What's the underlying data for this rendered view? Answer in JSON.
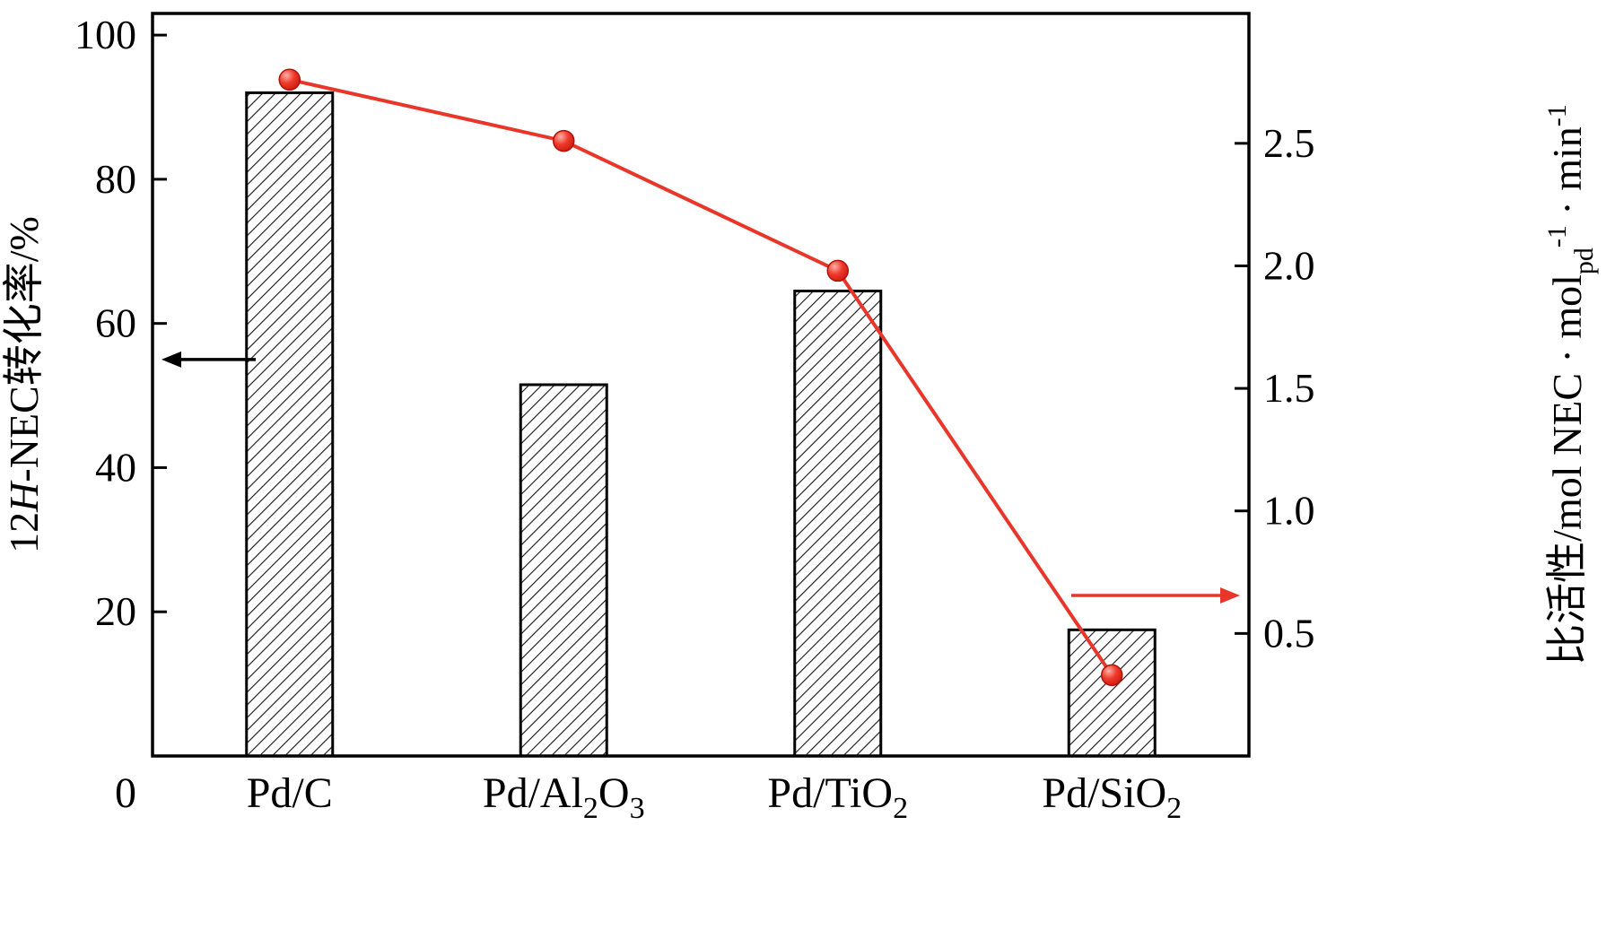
{
  "figure": {
    "background": "#ffffff"
  },
  "chart_data": {
    "type": "bar",
    "subtype": "bar-line-combo-dual-axis",
    "title": "",
    "xlabel": "",
    "categories": [
      "Pd/C",
      "Pd/Al2O3",
      "Pd/TiO2",
      "Pd/SiO2"
    ],
    "series": [
      {
        "name": "12H-NEC conversion (hatched bars, left axis)",
        "type": "bar",
        "axis": "left",
        "values": [
          92,
          51.5,
          64.5,
          17.5
        ]
      },
      {
        "name": "specific activity (red line with sphere markers, right axis)",
        "type": "line",
        "axis": "right",
        "values": [
          2.76,
          2.51,
          1.98,
          0.33
        ]
      }
    ],
    "left_axis": {
      "label": "12H-NEC转化率/%",
      "label_segments": [
        {
          "t": "12"
        },
        {
          "t": "H",
          "style": "italic"
        },
        {
          "t": "-NEC转化率/%"
        }
      ],
      "ticks": [
        20,
        40,
        60,
        80,
        100
      ],
      "origin_label": "0",
      "range": [
        0,
        103
      ]
    },
    "right_axis": {
      "label": "比活性/mol NEC·mol_pd^-1·min^-1",
      "label_segments": [
        {
          "t": "比活性/mol NEC · mol"
        },
        {
          "t": "pd",
          "style": "sub"
        },
        {
          "t": "-1",
          "style": "sup"
        },
        {
          "t": " · min"
        },
        {
          "t": "-1",
          "style": "sup"
        }
      ],
      "ticks": [
        0.5,
        1.0,
        1.5,
        2.0,
        2.5
      ],
      "range": [
        0,
        3.03
      ]
    },
    "grid": false,
    "legend": false,
    "annotations": [
      {
        "type": "arrow",
        "direction": "left",
        "axis": "left",
        "value": 55,
        "color": "#000000"
      },
      {
        "type": "arrow",
        "direction": "right",
        "axis": "right",
        "value": 0.655,
        "color": "#e8362a"
      }
    ],
    "colors": {
      "frame": "#000000",
      "text": "#000000",
      "bar_fill": "#ffffff",
      "bar_hatch": "#1a1a1a",
      "line": "#e8362a",
      "marker_edge": "#b31208"
    }
  }
}
